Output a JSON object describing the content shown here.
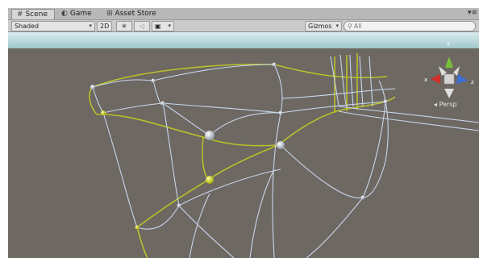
{
  "tabs": [
    {
      "label": "Scene",
      "icon": "grid-icon",
      "active": true
    },
    {
      "label": "Game",
      "icon": "pacman-icon",
      "active": false
    },
    {
      "label": "Asset Store",
      "icon": "cart-icon",
      "active": false
    }
  ],
  "toolbar": {
    "shading_mode": "Shaded",
    "mode_2d": "2D",
    "gizmos_label": "Gizmos",
    "search_value": "All"
  },
  "gizmo": {
    "x_label": "x",
    "y_label": "y",
    "z_label": "z",
    "projection_label": "Persp"
  },
  "colors": {
    "sky": "#a9cfd3",
    "ground": "#6d6862",
    "wire_blue": "#b3c6e4",
    "wire_yellow": "#b9c12a",
    "axis_x": "#d1302a",
    "axis_y": "#7ac23a",
    "axis_z": "#3b6fd6"
  }
}
